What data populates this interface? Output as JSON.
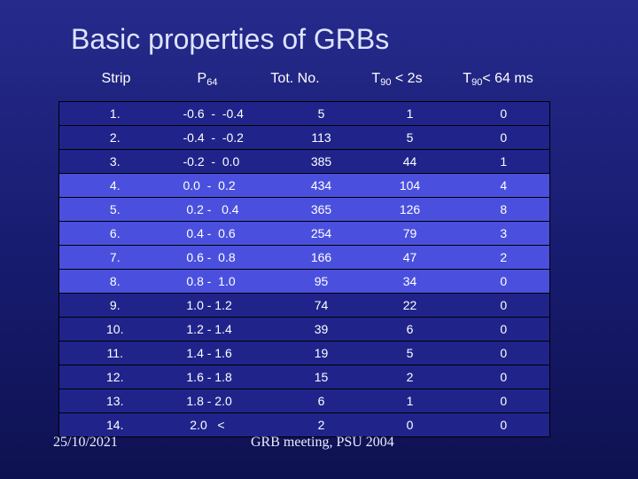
{
  "title": "Basic properties of GRBs",
  "headers": {
    "strip": "Strip",
    "p64_main": "P",
    "p64_sub": "64",
    "tot": "Tot. No.",
    "t2_main": "T",
    "t2_sub": "90",
    "t2_rest": " < 2s",
    "t64_main": "T",
    "t64_sub": "90",
    "t64_rest": "< 64 ms"
  },
  "rows": [
    {
      "strip": "1.",
      "p64": "-0.6  -  -0.4",
      "tot": "5",
      "t2": "1",
      "t64": "0"
    },
    {
      "strip": "2.",
      "p64": "-0.4  -  -0.2",
      "tot": "113",
      "t2": "5",
      "t64": "0"
    },
    {
      "strip": "3.",
      "p64": "-0.2  -  0.0",
      "tot": "385",
      "t2": "44",
      "t64": "1"
    },
    {
      "strip": "4.",
      "p64": "0.0  -  0.2",
      "tot": "434",
      "t2": "104",
      "t64": "4"
    },
    {
      "strip": "5.",
      "p64": " 0.2 -   0.4",
      "tot": "365",
      "t2": "126",
      "t64": "8"
    },
    {
      "strip": "6.",
      "p64": " 0.4 -  0.6",
      "tot": "254",
      "t2": "79",
      "t64": "3"
    },
    {
      "strip": "7.",
      "p64": " 0.6 -  0.8",
      "tot": "166",
      "t2": "47",
      "t64": "2"
    },
    {
      "strip": "8.",
      "p64": " 0.8 -  1.0",
      "tot": "95",
      "t2": "34",
      "t64": "0"
    },
    {
      "strip": "9.",
      "p64": " 1.0 - 1.2",
      "tot": "74",
      "t2": "22",
      "t64": "0"
    },
    {
      "strip": "10.",
      "p64": " 1.2 - 1.4",
      "tot": "39",
      "t2": "6",
      "t64": "0"
    },
    {
      "strip": "11.",
      "p64": " 1.4 - 1.6",
      "tot": "19",
      "t2": "5",
      "t64": "0"
    },
    {
      "strip": "12.",
      "p64": " 1.6 - 1.8",
      "tot": "15",
      "t2": "2",
      "t64": "0"
    },
    {
      "strip": "13.",
      "p64": " 1.8 - 2.0",
      "tot": "6",
      "t2": "1",
      "t64": "0"
    },
    {
      "strip": "14.",
      "p64": "  2.0   <",
      "tot": "2",
      "t2": "0",
      "t64": "0"
    }
  ],
  "footer": {
    "date": "25/10/2021",
    "meeting": "GRB meeting, PSU 2004"
  },
  "colors": {
    "background": "#1c2080",
    "band_row": "#4a50dd",
    "dark_row": "#20248a"
  }
}
